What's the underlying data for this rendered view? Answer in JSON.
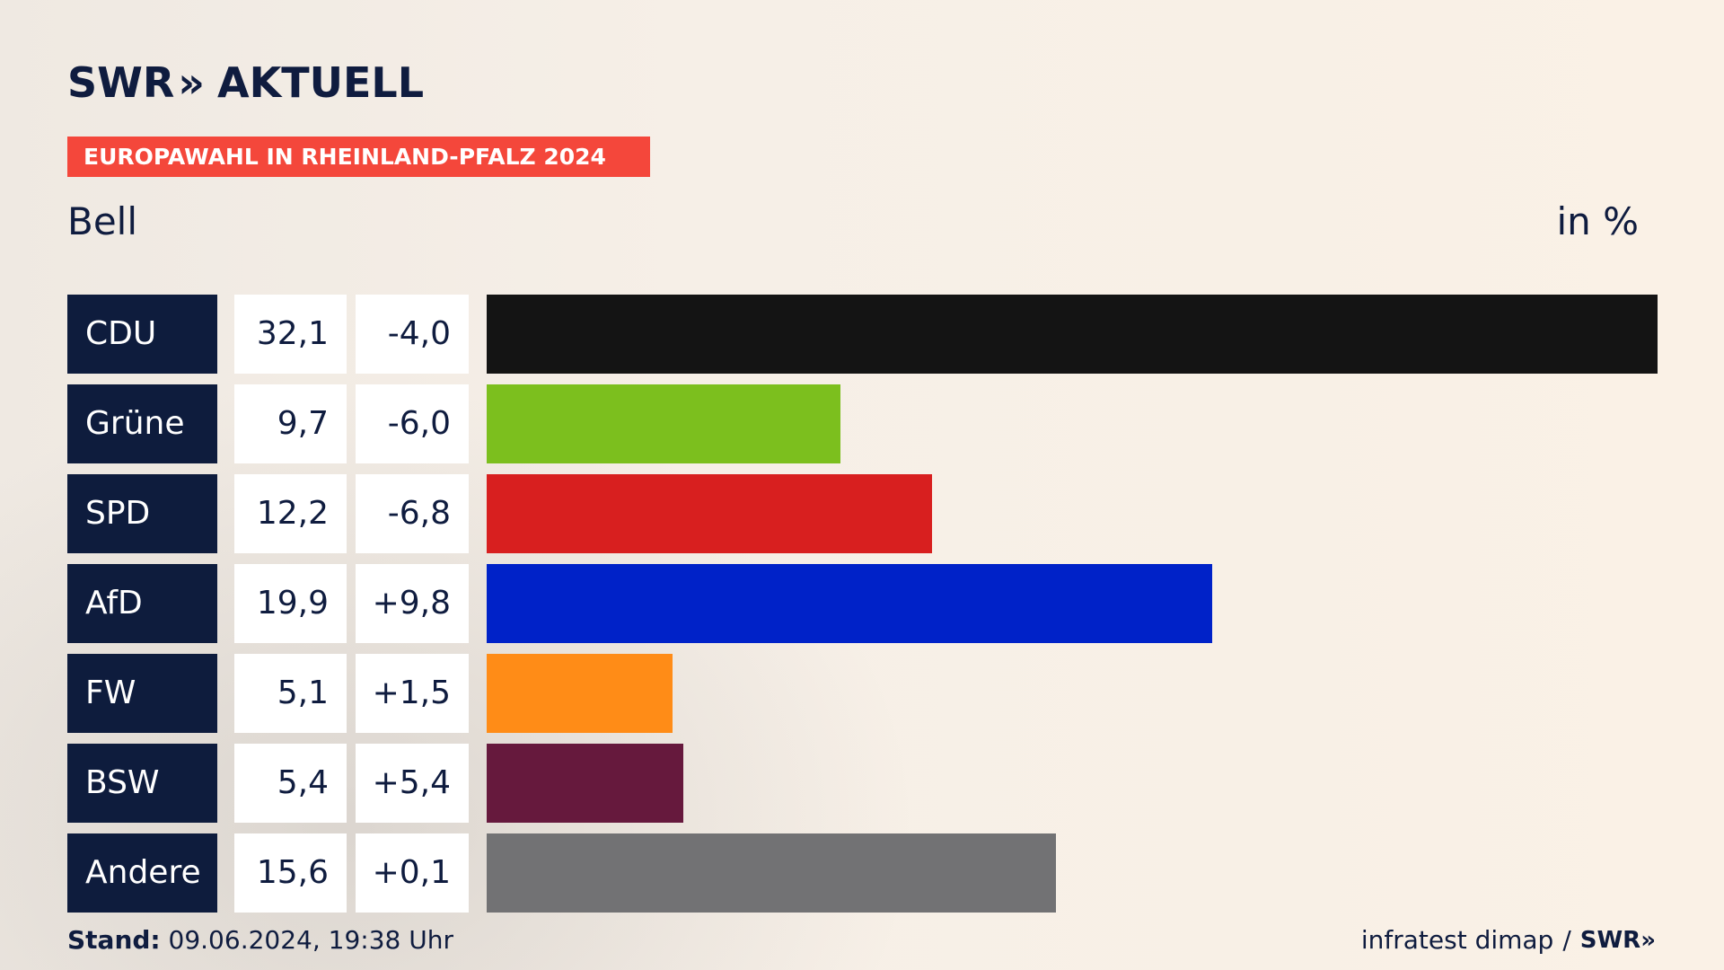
{
  "header": {
    "logo_text": "SWR",
    "logo_chevrons": "»",
    "logo_subtitle": "AKTUELL",
    "event_title": "EUROPAWAHL IN RHEINLAND-PFALZ 2024",
    "region": "Bell",
    "unit": "in %"
  },
  "colors": {
    "badge": "#f4473b",
    "navy": "#0e1c3d"
  },
  "chart_data": {
    "type": "bar",
    "orientation": "horizontal",
    "title": "EUROPAWAHL IN RHEINLAND-PFALZ 2024",
    "subtitle": "Bell",
    "unit": "in %",
    "categories": [
      "CDU",
      "Grüne",
      "SPD",
      "AfD",
      "FW",
      "BSW",
      "Andere"
    ],
    "values": [
      32.1,
      9.7,
      12.2,
      19.9,
      5.1,
      5.4,
      15.6
    ],
    "value_labels": [
      "32,1",
      "9,7",
      "12,2",
      "19,9",
      "5,1",
      "5,4",
      "15,6"
    ],
    "change_labels": [
      "-4,0",
      "-6,0",
      "-6,8",
      "+9,8",
      "+1,5",
      "+5,4",
      "+0,1"
    ],
    "changes": [
      -4.0,
      -6.0,
      -6.8,
      9.8,
      1.5,
      5.4,
      0.1
    ],
    "colors": [
      "#141414",
      "#7cbf1e",
      "#d81f1f",
      "#0022c8",
      "#ff8c17",
      "#66193d",
      "#727274"
    ],
    "xlim": [
      0,
      32.1
    ],
    "grid": false,
    "legend": "none"
  },
  "footer": {
    "stand_label": "Stand:",
    "stand_value": "09.06.2024, 19:38 Uhr",
    "source": "infratest dimap",
    "separator": "/",
    "source_brand": "SWR"
  }
}
